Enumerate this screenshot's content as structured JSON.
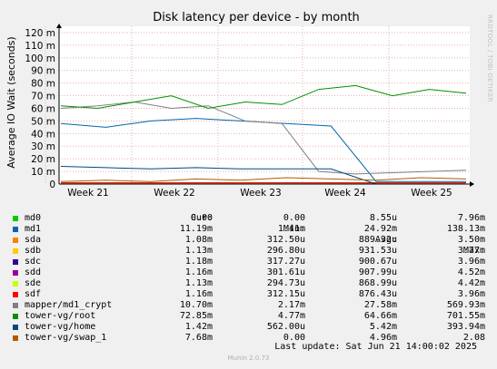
{
  "chart_data": {
    "type": "line",
    "title": "Disk latency per device - by month",
    "ylabel": "Average IO Wait (seconds)",
    "side_label": "RRDTOOL / TOBI OETIKER",
    "ylim": [
      0,
      0.125
    ],
    "yticks": [
      "0",
      "10 m",
      "20 m",
      "30 m",
      "40 m",
      "50 m",
      "60 m",
      "70 m",
      "80 m",
      "90 m",
      "100 m",
      "110 m",
      "120 m"
    ],
    "x_ticks": [
      "Week 21",
      "Week 22",
      "Week 23",
      "Week 24",
      "Week 25"
    ],
    "series": [
      {
        "name": "md0",
        "color": "#00cc00",
        "values": [
          0.0,
          0.0,
          0.0,
          0.0,
          0.0,
          0.0,
          0.0,
          0.0,
          0.0,
          0.0
        ]
      },
      {
        "name": "md1",
        "color": "#0066b3",
        "values": [
          0.048,
          0.045,
          0.05,
          0.052,
          0.05,
          0.048,
          0.046,
          0.002,
          0.002,
          0.002
        ]
      },
      {
        "name": "sda",
        "color": "#ff8000",
        "values": [
          0.001,
          0.001,
          0.001,
          0.001,
          0.001,
          0.001,
          0.001,
          0.001,
          0.001,
          0.001
        ]
      },
      {
        "name": "sdb",
        "color": "#ffcc00",
        "values": [
          0.001,
          0.001,
          0.001,
          0.001,
          0.001,
          0.001,
          0.001,
          0.001,
          0.001,
          0.001
        ]
      },
      {
        "name": "sdc",
        "color": "#330099",
        "values": [
          0.001,
          0.001,
          0.001,
          0.001,
          0.001,
          0.001,
          0.001,
          0.001,
          0.001,
          0.001
        ]
      },
      {
        "name": "sdd",
        "color": "#990099",
        "values": [
          0.001,
          0.001,
          0.001,
          0.001,
          0.001,
          0.001,
          0.001,
          0.001,
          0.001,
          0.001
        ]
      },
      {
        "name": "sde",
        "color": "#ccff00",
        "values": [
          0.001,
          0.001,
          0.001,
          0.001,
          0.001,
          0.001,
          0.001,
          0.001,
          0.001,
          0.001
        ]
      },
      {
        "name": "sdf",
        "color": "#ff0000",
        "values": [
          0.001,
          0.001,
          0.001,
          0.001,
          0.001,
          0.001,
          0.001,
          0.001,
          0.001,
          0.001
        ]
      },
      {
        "name": "mapper/md1_crypt",
        "color": "#808080",
        "values": [
          0.06,
          0.062,
          0.065,
          0.06,
          0.062,
          0.05,
          0.048,
          0.01,
          0.008,
          0.009,
          0.01,
          0.011
        ]
      },
      {
        "name": "tower-vg/root",
        "color": "#008f00",
        "values": [
          0.062,
          0.06,
          0.065,
          0.07,
          0.06,
          0.065,
          0.063,
          0.075,
          0.078,
          0.07,
          0.075,
          0.072
        ]
      },
      {
        "name": "tower-vg/home",
        "color": "#00487d",
        "values": [
          0.014,
          0.013,
          0.012,
          0.013,
          0.012,
          0.012,
          0.012,
          0.0,
          0.0,
          0.0
        ]
      },
      {
        "name": "tower-vg/swap_1",
        "color": "#b35a00",
        "values": [
          0.002,
          0.003,
          0.002,
          0.004,
          0.003,
          0.005,
          0.004,
          0.003,
          0.005,
          0.004
        ]
      }
    ]
  },
  "legend": {
    "headers": [
      "Cur:",
      "Min:",
      "Avg:",
      "Max:"
    ],
    "rows": [
      {
        "name": "md0",
        "color": "#00cc00",
        "cur": "0.00",
        "min": "0.00",
        "avg": "8.55u",
        "max": "7.96m"
      },
      {
        "name": "md1",
        "color": "#0066b3",
        "cur": "11.19m",
        "min": "1.41m",
        "avg": "24.92m",
        "max": "138.13m"
      },
      {
        "name": "sda",
        "color": "#ff8000",
        "cur": "1.08m",
        "min": "312.50u",
        "avg": "889.32u",
        "max": "3.50m"
      },
      {
        "name": "sdb",
        "color": "#ffcc00",
        "cur": "1.13m",
        "min": "296.80u",
        "avg": "931.53u",
        "max": "3.77m"
      },
      {
        "name": "sdc",
        "color": "#330099",
        "cur": "1.18m",
        "min": "317.27u",
        "avg": "900.67u",
        "max": "3.96m"
      },
      {
        "name": "sdd",
        "color": "#990099",
        "cur": "1.16m",
        "min": "301.61u",
        "avg": "907.99u",
        "max": "4.52m"
      },
      {
        "name": "sde",
        "color": "#ccff00",
        "cur": "1.13m",
        "min": "294.73u",
        "avg": "868.99u",
        "max": "4.42m"
      },
      {
        "name": "sdf",
        "color": "#ff0000",
        "cur": "1.16m",
        "min": "312.15u",
        "avg": "876.43u",
        "max": "3.96m"
      },
      {
        "name": "mapper/md1_crypt",
        "color": "#808080",
        "cur": "10.70m",
        "min": "2.17m",
        "avg": "27.58m",
        "max": "569.93m"
      },
      {
        "name": "tower-vg/root",
        "color": "#008f00",
        "cur": "72.85m",
        "min": "4.77m",
        "avg": "64.66m",
        "max": "701.55m"
      },
      {
        "name": "tower-vg/home",
        "color": "#00487d",
        "cur": "1.42m",
        "min": "562.00u",
        "avg": "5.42m",
        "max": "393.94m"
      },
      {
        "name": "tower-vg/swap_1",
        "color": "#b35a00",
        "cur": "7.68m",
        "min": "0.00",
        "avg": "4.96m",
        "max": "2.08"
      }
    ]
  },
  "footer": {
    "last_update": "Last update: Sat Jun 21 14:00:02 2025",
    "version": "Munin 2.0.73"
  }
}
